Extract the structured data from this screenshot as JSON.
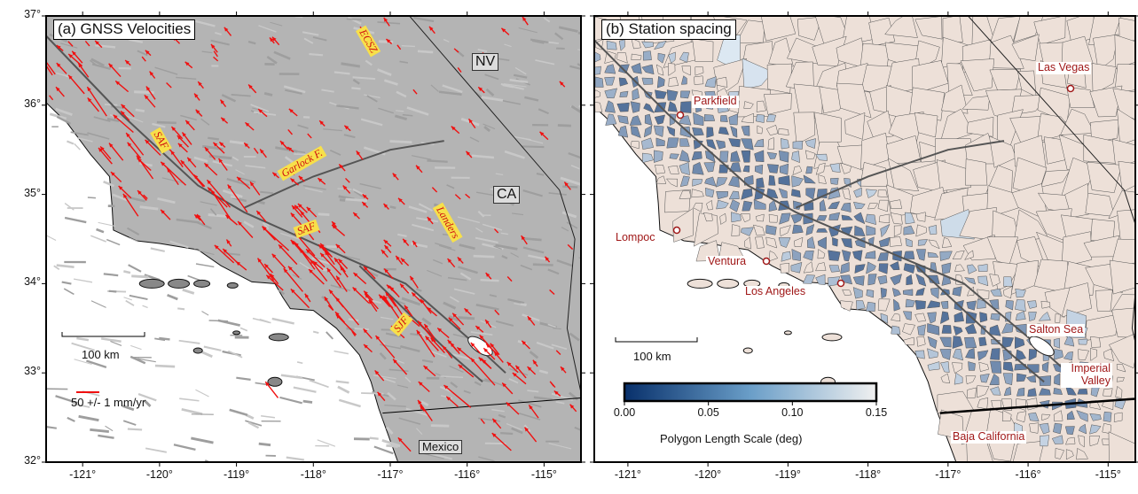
{
  "map_axes": {
    "lat_ticks": [
      {
        "value": 37,
        "label": "37°"
      },
      {
        "value": 36,
        "label": "36°"
      },
      {
        "value": 35,
        "label": "35°"
      },
      {
        "value": 34,
        "label": "34°"
      },
      {
        "value": 33,
        "label": "33°"
      },
      {
        "value": 32,
        "label": "32°"
      }
    ],
    "lon_ticks": [
      {
        "value": -121,
        "label": "-121°"
      },
      {
        "value": -120,
        "label": "-120°"
      },
      {
        "value": -119,
        "label": "-119°"
      },
      {
        "value": -118,
        "label": "-118°"
      },
      {
        "value": -117,
        "label": "-117°"
      },
      {
        "value": -116,
        "label": "-116°"
      },
      {
        "value": -115,
        "label": "-115°"
      }
    ]
  },
  "panel_a": {
    "title": "(a) GNSS Velocities",
    "fault_labels": [
      "ECSZ",
      "SAF",
      "Garlock F.",
      "SAF",
      "Landers",
      "SJF"
    ],
    "region_labels": [
      "NV",
      "CA",
      "Mexico"
    ],
    "scale_bar": "100 km",
    "velocity_legend": "50 +/- 1 mm/yr"
  },
  "panel_b": {
    "title": "(b) Station spacing",
    "places": [
      "Parkfield",
      "Las Vegas",
      "Lompoc",
      "Ventura",
      "Los Angeles",
      "Salton Sea",
      "Imperial Valley",
      "Baja California"
    ],
    "scale_bar": "100 km",
    "colorbar": {
      "label": "Polygon Length Scale (deg)",
      "ticks": [
        {
          "value": 0,
          "label": "0.00"
        },
        {
          "value": 0.05,
          "label": "0.05"
        },
        {
          "value": 0.1,
          "label": "0.10"
        },
        {
          "value": 0.15,
          "label": "0.15"
        }
      ]
    }
  }
}
